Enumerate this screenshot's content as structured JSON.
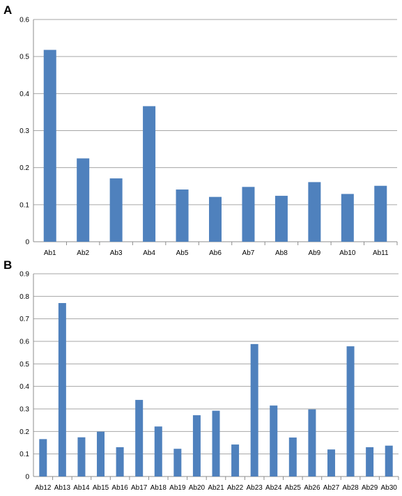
{
  "chart_data": [
    {
      "panel": "A",
      "type": "bar",
      "categories": [
        "Ab1",
        "Ab2",
        "Ab3",
        "Ab4",
        "Ab5",
        "Ab6",
        "Ab7",
        "Ab8",
        "Ab9",
        "Ab10",
        "Ab11"
      ],
      "values": [
        0.518,
        0.225,
        0.171,
        0.366,
        0.141,
        0.121,
        0.148,
        0.124,
        0.161,
        0.129,
        0.151
      ],
      "ylim": [
        0,
        0.6
      ],
      "yticks": [
        "0",
        "0.1",
        "0.2",
        "0.3",
        "0.4",
        "0.5",
        "0.6"
      ],
      "grid": true,
      "color": "#4F81BD"
    },
    {
      "panel": "B",
      "type": "bar",
      "categories": [
        "Ab12",
        "Ab13",
        "Ab14",
        "Ab15",
        "Ab16",
        "Ab17",
        "Ab18",
        "Ab19",
        "Ab20",
        "Ab21",
        "Ab22",
        "Ab23",
        "Ab24",
        "Ab25",
        "Ab26",
        "Ab27",
        "Ab28",
        "Ab29",
        "Ab30"
      ],
      "values": [
        0.166,
        0.77,
        0.174,
        0.199,
        0.13,
        0.34,
        0.222,
        0.123,
        0.272,
        0.292,
        0.142,
        0.588,
        0.315,
        0.173,
        0.298,
        0.12,
        0.578,
        0.13,
        0.137
      ],
      "ylim": [
        0,
        0.9
      ],
      "yticks": [
        "0",
        "0.1",
        "0.2",
        "0.3",
        "0.4",
        "0.5",
        "0.6",
        "0.7",
        "0.8",
        "0.9"
      ],
      "grid": true,
      "color": "#4F81BD"
    }
  ]
}
